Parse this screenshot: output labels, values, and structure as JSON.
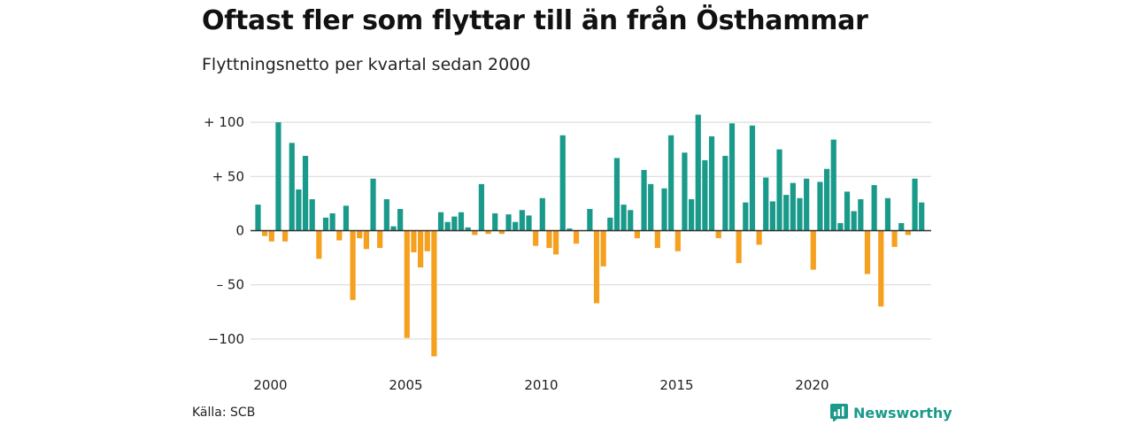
{
  "header": {
    "title": "Oftast fler som flyttar till än från Östhammar",
    "subtitle": "Flyttningsnetto per kvartal sedan 2000"
  },
  "footer": {
    "source": "Källa: SCB",
    "brand": "Newsworthy",
    "brand_icon": "newsworthy-logo-icon"
  },
  "colors": {
    "positive": "#1a9a8a",
    "negative": "#f5a01f",
    "grid": "#dddddd",
    "zero_line": "#333333"
  },
  "chart_data": {
    "type": "bar",
    "title": "Oftast fler som flyttar till än från Östhammar",
    "subtitle": "Flyttningsnetto per kvartal sedan 2000",
    "xlabel": "",
    "ylabel": "",
    "ylim": [
      -120,
      110
    ],
    "y_ticks": [
      100,
      50,
      0,
      -50,
      -100
    ],
    "y_tick_labels": [
      "+ 100",
      "+  50",
      "0",
      "– 50",
      "−100"
    ],
    "x_tick_labels": [
      "2000",
      "2005",
      "2010",
      "2015",
      "2020"
    ],
    "grid": true,
    "legend": "none",
    "start_year": 2000,
    "series": [
      {
        "values": [
          24,
          -5,
          -10,
          100,
          -10,
          81,
          38,
          69,
          29,
          -26,
          12,
          16,
          -9,
          23,
          -64,
          -7,
          -17,
          48,
          -16,
          29,
          4,
          20,
          -99,
          -20,
          -34,
          -19,
          -116,
          17,
          8,
          13,
          17,
          3,
          -4,
          43,
          -3,
          16,
          -3,
          15,
          8,
          19,
          14,
          -14,
          30,
          -16,
          -22,
          88,
          2,
          -12,
          0,
          20,
          -67,
          -33,
          12,
          67,
          24,
          19,
          -7,
          56,
          43,
          -16,
          39,
          88,
          -19,
          72,
          29,
          107,
          65,
          87,
          -7,
          69,
          99,
          -30,
          26,
          97,
          -13,
          49,
          27,
          75,
          33,
          44,
          30,
          48,
          -36,
          45,
          57,
          84,
          7,
          36,
          18,
          29,
          -40,
          42,
          -70,
          30,
          -15,
          7,
          -4,
          48,
          26
        ]
      }
    ]
  }
}
